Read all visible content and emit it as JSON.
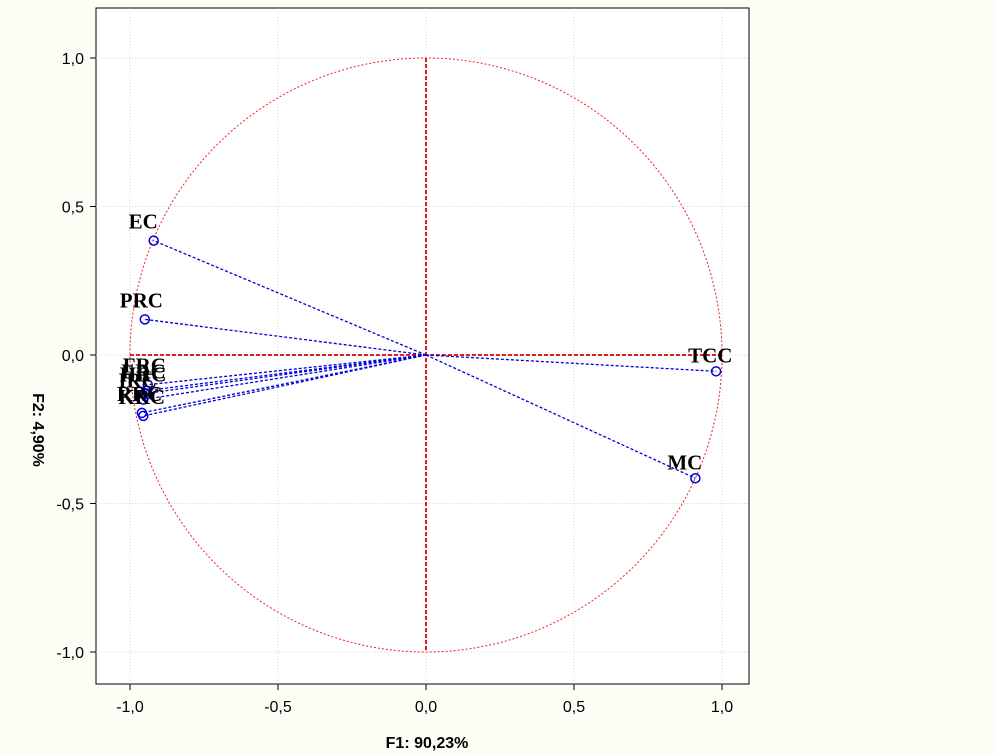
{
  "chart_data": {
    "type": "scatter",
    "title": "",
    "xlabel": "F1: 90,23%",
    "ylabel": "F2: 4,90%",
    "xlim": [
      -1.1,
      1.1
    ],
    "ylim": [
      -1.1,
      1.1
    ],
    "xticks": [
      -1.0,
      -0.5,
      0.0,
      0.5,
      1.0
    ],
    "xtick_labels": [
      "-1,0",
      "-0,5",
      "0,0",
      "0,5",
      "1,0"
    ],
    "yticks": [
      1.0,
      0.5,
      0.0,
      -0.5,
      -1.0
    ],
    "ytick_labels": [
      "1,0",
      "0,5",
      "0,0",
      "-0,5",
      "-1,0"
    ],
    "grid": true,
    "unit_circle": true,
    "points": [
      {
        "label": "EC",
        "x": -0.92,
        "y": 0.385
      },
      {
        "label": "PRC",
        "x": -0.95,
        "y": 0.12
      },
      {
        "label": "FRC",
        "x": -0.94,
        "y": -0.1
      },
      {
        "label": "LRC",
        "x": -0.945,
        "y": -0.12
      },
      {
        "label": "HRC",
        "x": -0.95,
        "y": -0.13
      },
      {
        "label": "IRC",
        "x": -0.955,
        "y": -0.15
      },
      {
        "label": "RRC",
        "x": -0.96,
        "y": -0.195
      },
      {
        "label": "KRC",
        "x": -0.955,
        "y": -0.205
      },
      {
        "label": "TCC",
        "x": 0.98,
        "y": -0.055
      },
      {
        "label": "MC",
        "x": 0.91,
        "y": -0.415
      }
    ],
    "colors": {
      "vector": "#0000dd",
      "circle": "#ee2222",
      "axis_line": "#dd0000",
      "grid": "#c8c8c8",
      "background": "#fdfdf5",
      "plot_background": "#ffffff"
    }
  }
}
